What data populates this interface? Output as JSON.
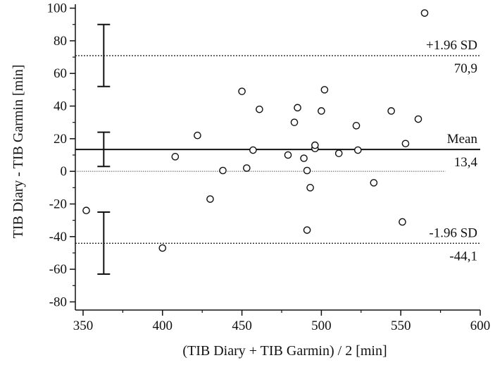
{
  "chart_data": {
    "type": "scatter",
    "title": "",
    "xlabel": "(TIB Diary + TIB Garmin) / 2 [min]",
    "ylabel": "TIB Diary - TIB Garmin [min]",
    "xlim": [
      350,
      600
    ],
    "ylim": [
      -85,
      105
    ],
    "xticks": [
      350,
      400,
      450,
      500,
      550,
      600
    ],
    "yticks": [
      -80,
      -60,
      -40,
      -20,
      0,
      20,
      40,
      60,
      80,
      100
    ],
    "grid": false,
    "points": [
      {
        "x": 352,
        "y": -24
      },
      {
        "x": 400,
        "y": -47
      },
      {
        "x": 408,
        "y": 9
      },
      {
        "x": 422,
        "y": 22
      },
      {
        "x": 430,
        "y": -17
      },
      {
        "x": 438,
        "y": 0.5
      },
      {
        "x": 450,
        "y": 49
      },
      {
        "x": 453,
        "y": 2
      },
      {
        "x": 457,
        "y": 13
      },
      {
        "x": 461,
        "y": 38
      },
      {
        "x": 479,
        "y": 10
      },
      {
        "x": 483,
        "y": 30
      },
      {
        "x": 485,
        "y": 39
      },
      {
        "x": 489,
        "y": 8
      },
      {
        "x": 491,
        "y": 0.5
      },
      {
        "x": 491,
        "y": -36
      },
      {
        "x": 493,
        "y": -10
      },
      {
        "x": 496,
        "y": 14
      },
      {
        "x": 496,
        "y": 16
      },
      {
        "x": 500,
        "y": 37
      },
      {
        "x": 502,
        "y": 50
      },
      {
        "x": 511,
        "y": 11
      },
      {
        "x": 522,
        "y": 28
      },
      {
        "x": 523,
        "y": 13
      },
      {
        "x": 533,
        "y": -7
      },
      {
        "x": 544,
        "y": 37
      },
      {
        "x": 551,
        "y": -31
      },
      {
        "x": 553,
        "y": 17
      },
      {
        "x": 561,
        "y": 32
      },
      {
        "x": 565,
        "y": 97
      }
    ],
    "reference_lines": [
      {
        "role": "upper-loa",
        "y": 70.9,
        "label": "+1.96 SD",
        "value_label": "70,9",
        "style": "dotted",
        "ci": [
          52,
          90
        ]
      },
      {
        "role": "mean",
        "y": 13.4,
        "label": "Mean",
        "value_label": "13,4",
        "style": "solid",
        "ci": [
          3,
          24
        ]
      },
      {
        "role": "lower-loa",
        "y": -44.1,
        "label": "-1.96 SD",
        "value_label": "-44,1",
        "style": "dotted",
        "ci": [
          -63,
          -25
        ]
      }
    ],
    "zero_line": {
      "y": 0,
      "style": "dotted",
      "x_end": 578
    },
    "ci_bar_x": 363
  }
}
